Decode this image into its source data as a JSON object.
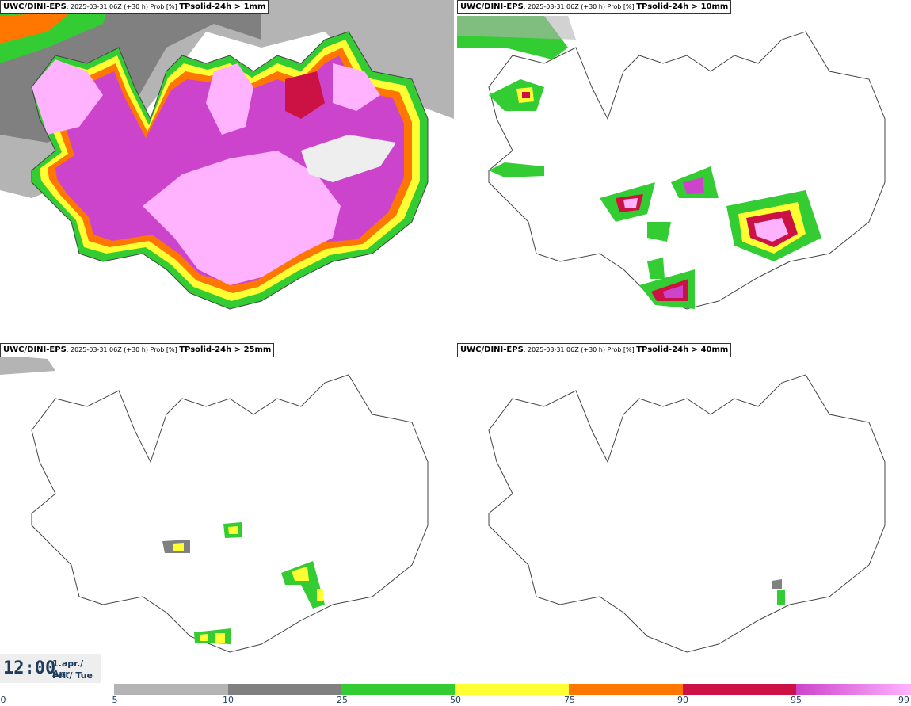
{
  "panels": [
    {
      "model": "UWC/DINI-EPS",
      "run": ": 2025-03-31 06Z (+30 h) Prob [%] ",
      "param": "TPsolid-24h > 1mm"
    },
    {
      "model": "UWC/DINI-EPS",
      "run": ": 2025-03-31 06Z (+30 h) Prob [%] ",
      "param": "TPsolid-24h > 10mm"
    },
    {
      "model": "UWC/DINI-EPS",
      "run": ": 2025-03-31 06Z (+30 h) Prob [%] ",
      "param": "TPsolid-24h > 25mm"
    },
    {
      "model": "UWC/DINI-EPS",
      "run": ": 2025-03-31 06Z (+30 h) Prob [%] ",
      "param": "TPsolid-24h > 40mm"
    }
  ],
  "time": {
    "hour": "12:00",
    "date_line1": "1.apr./ Apr",
    "date_line2": "Þri./ Tue"
  },
  "colorbar": {
    "ticks": [
      "0",
      "5",
      "10",
      "25",
      "50",
      "75",
      "90",
      "95",
      "99"
    ],
    "colors": {
      "c5": "#b4b4b4",
      "c10": "#808080",
      "c25": "#33cc33",
      "c50": "#ffff33",
      "c75": "#ff7700",
      "c90": "#cc1144",
      "c95": "#cc44cc",
      "c99": "#ffb3ff"
    }
  }
}
